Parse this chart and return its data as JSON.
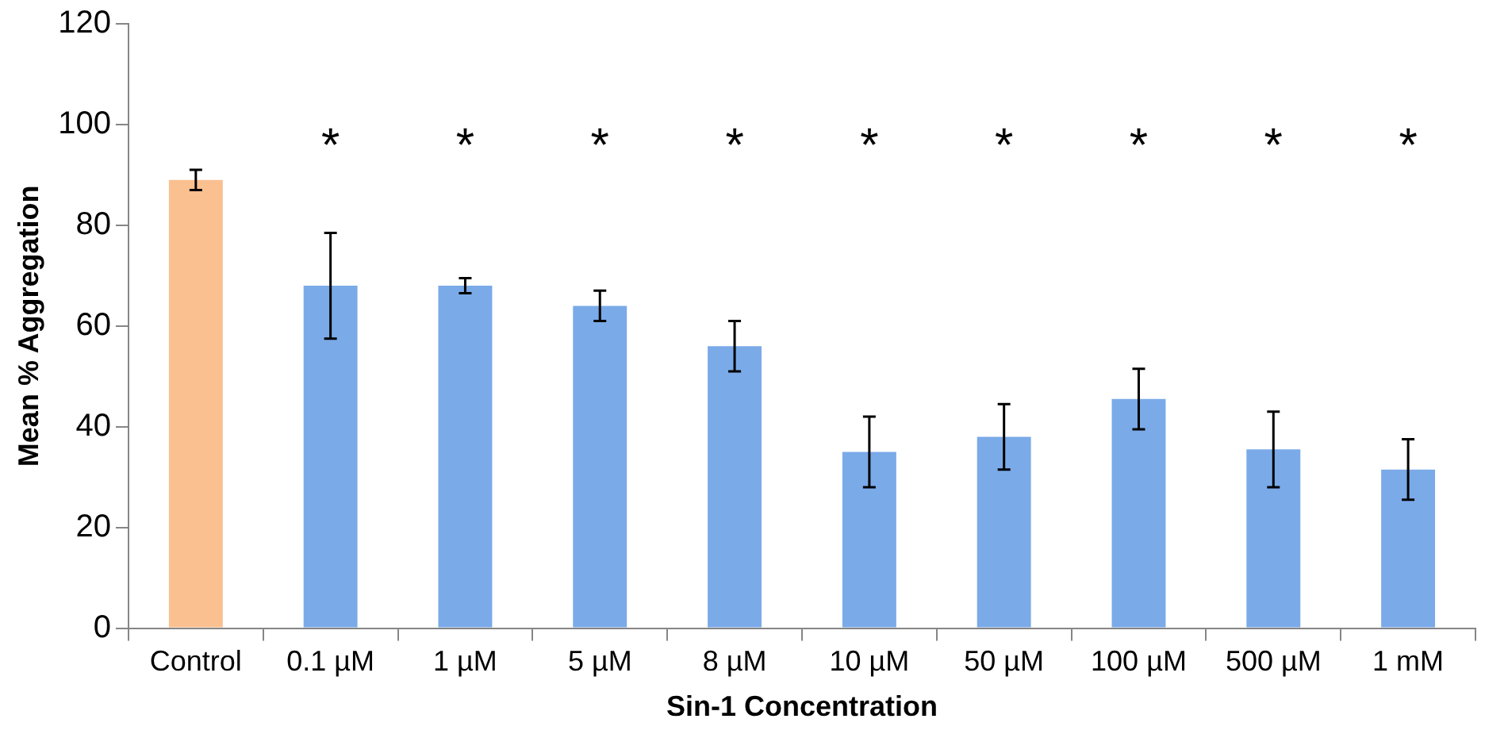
{
  "chart_data": {
    "type": "bar",
    "xlabel": "Sin-1 Concentration",
    "ylabel": "Mean % Aggregation",
    "categories": [
      "Control",
      "0.1 µM",
      "1 µM",
      "5 µM",
      "8 µM",
      "10 µM",
      "50 µM",
      "100 µM",
      "500 µM",
      "1 mM"
    ],
    "values": [
      89,
      68,
      68,
      64,
      56,
      35,
      38,
      45.5,
      35.5,
      31.5
    ],
    "errors": [
      2,
      10.5,
      1.5,
      3,
      5,
      7,
      6.5,
      6,
      7.5,
      6
    ],
    "colors": [
      "#fac090",
      "#7aaae8",
      "#7aaae8",
      "#7aaae8",
      "#7aaae8",
      "#7aaae8",
      "#7aaae8",
      "#7aaae8",
      "#7aaae8",
      "#7aaae8"
    ],
    "ylim": [
      0,
      120
    ],
    "yticks": [
      0,
      20,
      40,
      60,
      80,
      100,
      120
    ],
    "grid": false,
    "legend": false,
    "annotations": [
      "*",
      "*",
      "*",
      "*",
      "*",
      "*",
      "*",
      "*",
      "*"
    ]
  }
}
